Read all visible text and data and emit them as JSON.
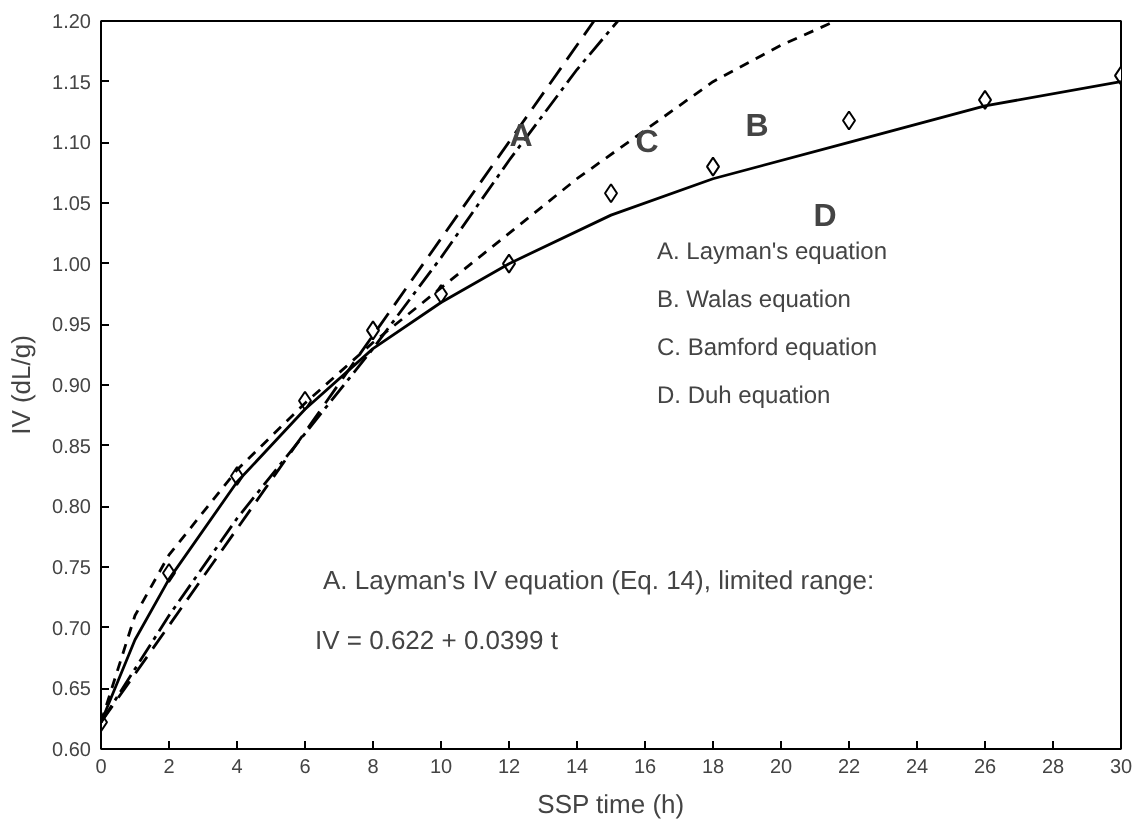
{
  "chart_data": {
    "type": "line",
    "xlabel": "SSP time (h)",
    "ylabel": "IV (dL/g)",
    "xlim": [
      0,
      30
    ],
    "xticks": [
      0,
      2,
      4,
      6,
      8,
      10,
      12,
      14,
      16,
      18,
      20,
      22,
      24,
      26,
      28,
      30
    ],
    "ylim": [
      0.6,
      1.2
    ],
    "yticks": [
      {
        "value": 0.6,
        "label": "0.60"
      },
      {
        "value": 0.65,
        "label": "0.65"
      },
      {
        "value": 0.7,
        "label": "0.70"
      },
      {
        "value": 0.75,
        "label": "0.75"
      },
      {
        "value": 0.8,
        "label": "0.80"
      },
      {
        "value": 0.85,
        "label": "0.85"
      },
      {
        "value": 0.9,
        "label": "0.90"
      },
      {
        "value": 0.95,
        "label": "0.95"
      },
      {
        "value": 1.0,
        "label": "1.00"
      },
      {
        "value": 1.05,
        "label": "1.05"
      },
      {
        "value": 1.1,
        "label": "1.10"
      },
      {
        "value": 1.15,
        "label": "1.15"
      },
      {
        "value": 1.2,
        "label": "1.20"
      }
    ],
    "grid": false,
    "series": [
      {
        "type": "scatter",
        "marker": "diamond",
        "color": "#000000",
        "x": [
          0,
          2,
          4,
          6,
          8,
          10,
          12,
          15,
          18,
          22,
          26,
          30
        ],
        "values": [
          0.622,
          0.745,
          0.825,
          0.887,
          0.945,
          0.975,
          1.0,
          1.058,
          1.08,
          1.118,
          1.135,
          1.155
        ]
      },
      {
        "line_style": "dashed",
        "color": "#000000",
        "x": [
          0,
          14.5
        ],
        "values": [
          0.622,
          1.2
        ]
      },
      {
        "line_style": "dotted",
        "color": "#000000",
        "x": [
          0,
          1,
          2,
          4,
          6,
          8,
          10,
          12,
          14,
          16,
          18,
          20,
          21.6
        ],
        "values": [
          0.622,
          0.71,
          0.76,
          0.83,
          0.885,
          0.935,
          0.98,
          1.025,
          1.07,
          1.11,
          1.15,
          1.18,
          1.2
        ]
      },
      {
        "line_style": "dashdot",
        "color": "#000000",
        "x": [
          0,
          2,
          4,
          6,
          8,
          10,
          12,
          14,
          15.2
        ],
        "values": [
          0.622,
          0.71,
          0.79,
          0.86,
          0.93,
          1.005,
          1.085,
          1.16,
          1.2
        ]
      },
      {
        "line_style": "solid",
        "color": "#000000",
        "x": [
          0,
          1,
          2,
          4,
          6,
          8,
          10,
          12,
          15,
          18,
          22,
          26,
          30
        ],
        "values": [
          0.622,
          0.69,
          0.74,
          0.82,
          0.88,
          0.93,
          0.968,
          1.0,
          1.04,
          1.07,
          1.1,
          1.13,
          1.15
        ]
      }
    ],
    "annotations": [
      "A",
      "C",
      "B",
      "D",
      "A. Layman's equation",
      "B. Walas equation",
      "C. Bamford equation",
      "D. Duh equation",
      "A. Layman's IV equation (Eq. 14), limited range:",
      "IV = 0.622 + 0.0399 t"
    ]
  }
}
